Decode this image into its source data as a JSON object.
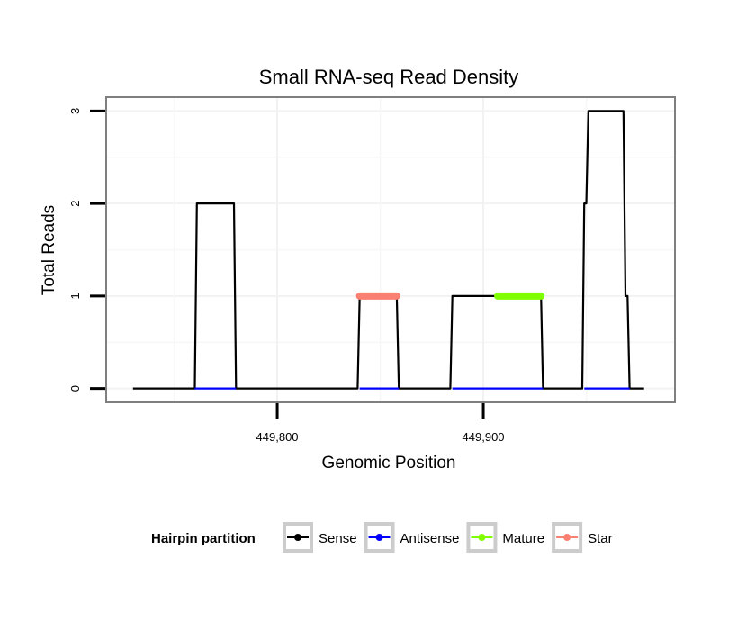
{
  "chart_data": {
    "type": "line",
    "title": "Small RNA-seq Read Density",
    "xlabel": "Genomic Position",
    "ylabel": "Total Reads",
    "xlim": [
      449717,
      449993
    ],
    "ylim": [
      -0.15,
      3.15
    ],
    "x_ticks": [
      449800,
      449900
    ],
    "x_tick_labels": [
      "449,800",
      "449,900"
    ],
    "y_ticks": [
      0,
      1,
      2,
      3
    ],
    "y_tick_labels": [
      "0",
      "1",
      "2",
      "3"
    ],
    "grid": true,
    "legend_title": "Hairpin partition",
    "legend_position": "bottom",
    "series": [
      {
        "name": "Sense",
        "color": "#000000",
        "x": [
          449730,
          449760,
          449761,
          449779,
          449780,
          449839,
          449840,
          449858,
          449859,
          449884,
          449885,
          449928,
          449929,
          449948,
          449949,
          449950,
          449951,
          449968,
          449969,
          449970,
          449971,
          449978
        ],
        "y": [
          0,
          0,
          2,
          2,
          0,
          0,
          1,
          1,
          0,
          0,
          1,
          1,
          0,
          0,
          2,
          2,
          3,
          3,
          1,
          1,
          0,
          0
        ]
      },
      {
        "name": "Antisense",
        "color": "#0000FF",
        "x": [
          449760,
          449780,
          449840,
          449859,
          449885,
          449929,
          449949,
          449971
        ],
        "y": [
          0,
          0,
          0,
          0,
          0,
          0,
          0,
          0
        ],
        "segments": [
          [
            449760,
            449780
          ],
          [
            449840,
            449859
          ],
          [
            449885,
            449929
          ],
          [
            449949,
            449971
          ]
        ]
      },
      {
        "name": "Mature",
        "color": "#7FFF00",
        "x": [
          449907,
          449928
        ],
        "y": [
          1,
          1
        ]
      },
      {
        "name": "Star",
        "color": "#FA8072",
        "x": [
          449840,
          449858
        ],
        "y": [
          1,
          1
        ]
      }
    ]
  }
}
